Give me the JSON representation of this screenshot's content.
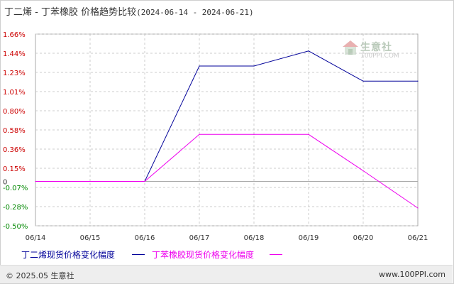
{
  "header": {
    "title": "丁二烯 - 丁苯橡胶 价格趋势比较",
    "range": "(2024-06-14 - 2024-06-21)"
  },
  "watermark": {
    "cn": "生意社",
    "en": "100PPI.COM"
  },
  "footer": {
    "copyright": "© 2025.05 生意社",
    "site": "www.100PPI.com"
  },
  "colors": {
    "series_1": "#000099",
    "series_2": "#ee00ee",
    "grid": "#cccccc",
    "neg_tick": "#008800",
    "pos_tick": "#cc0000"
  },
  "chart_data": {
    "type": "line",
    "x": [
      "06/14",
      "06/15",
      "06/16",
      "06/17",
      "06/18",
      "06/19",
      "06/20",
      "06/21"
    ],
    "y_ticks": [
      "1.66%",
      "1.44%",
      "1.23%",
      "1.01%",
      "0.80%",
      "0.58%",
      "0.36%",
      "0.15%",
      "-0.07%",
      "-0.28%",
      "-0.50%"
    ],
    "zero_label": "0",
    "ylim": [
      -0.5,
      1.66
    ],
    "grid": true,
    "legend_position": "bottom",
    "series": [
      {
        "name": "丁二烯现货价格变化幅度",
        "color": "#000099",
        "values": [
          0.0,
          0.0,
          0.0,
          1.3,
          1.3,
          1.47,
          1.13,
          1.13
        ]
      },
      {
        "name": "丁苯橡胶现货价格变化幅度",
        "color": "#ee00ee",
        "values": [
          0.0,
          0.0,
          0.0,
          0.53,
          0.53,
          0.53,
          0.12,
          -0.3
        ]
      }
    ]
  }
}
